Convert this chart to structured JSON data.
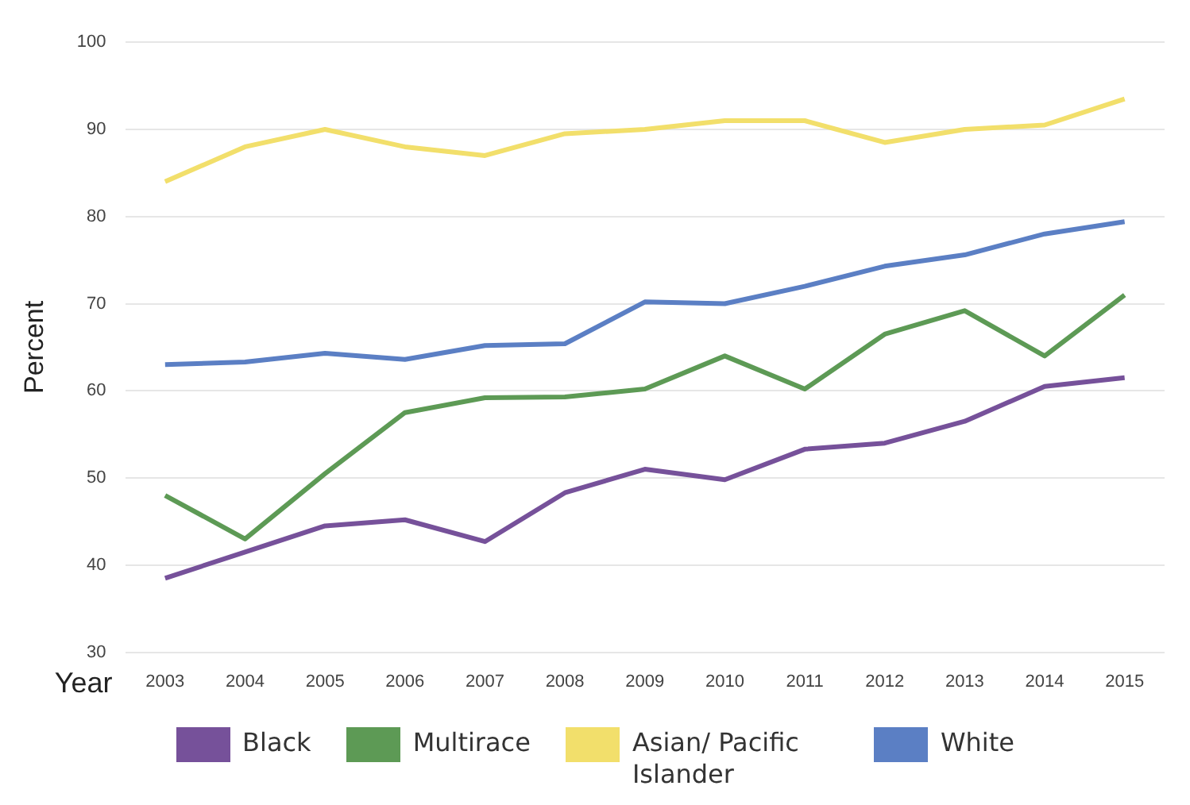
{
  "chart_data": {
    "type": "line",
    "xlabel": "Year",
    "ylabel": "Percent",
    "categories": [
      "2003",
      "2004",
      "2005",
      "2006",
      "2007",
      "2008",
      "2009",
      "2010",
      "2011",
      "2012",
      "2013",
      "2014",
      "2015"
    ],
    "series": [
      {
        "name": "Black",
        "color": "#76519a",
        "values": [
          38.5,
          41.5,
          44.5,
          45.2,
          42.7,
          48.3,
          51,
          49.8,
          53.3,
          54,
          56.5,
          60.5,
          61.5
        ]
      },
      {
        "name": "Multirace",
        "color": "#5d9a55",
        "values": [
          48,
          43,
          50.5,
          57.5,
          59.2,
          59.3,
          60.2,
          64,
          60.2,
          66.5,
          69.2,
          64,
          71
        ]
      },
      {
        "name": "Asian/ Pacific Islander",
        "color": "#f2df6b",
        "values": [
          84,
          88,
          90,
          88,
          87,
          89.5,
          90,
          91,
          91,
          88.5,
          90,
          90.5,
          93.5
        ]
      },
      {
        "name": "White",
        "color": "#5b7fc4",
        "values": [
          63,
          63.3,
          64.3,
          63.6,
          65.2,
          65.4,
          70.2,
          70,
          72,
          74.3,
          75.6,
          78,
          79.4
        ]
      }
    ],
    "ylim": [
      30,
      100
    ],
    "yticks": [
      30,
      40,
      50,
      60,
      70,
      80,
      90,
      100
    ],
    "grid": "y",
    "legend": "bottom",
    "marker": "none",
    "line_style": "solid"
  }
}
